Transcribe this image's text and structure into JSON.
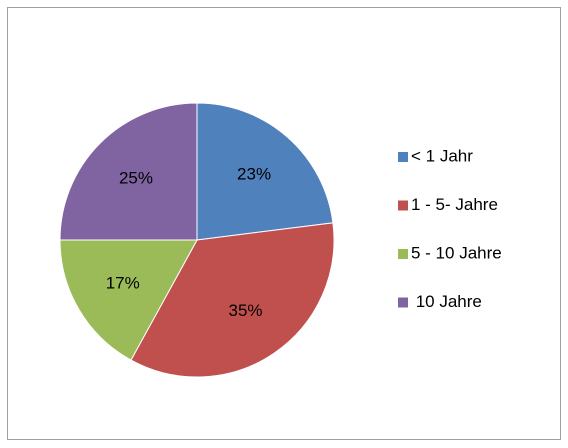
{
  "chart_data": {
    "type": "pie",
    "categories": [
      "< 1 Jahr",
      "1 - 5- Jahre",
      "5 - 10 Jahre",
      " 10 Jahre"
    ],
    "values": [
      23,
      35,
      17,
      25
    ],
    "value_labels": [
      "23%",
      "35%",
      "17%",
      "25%"
    ],
    "colors": [
      "#4f81bd",
      "#c0504d",
      "#9bbb59",
      "#8064a2"
    ],
    "legend": "right"
  }
}
